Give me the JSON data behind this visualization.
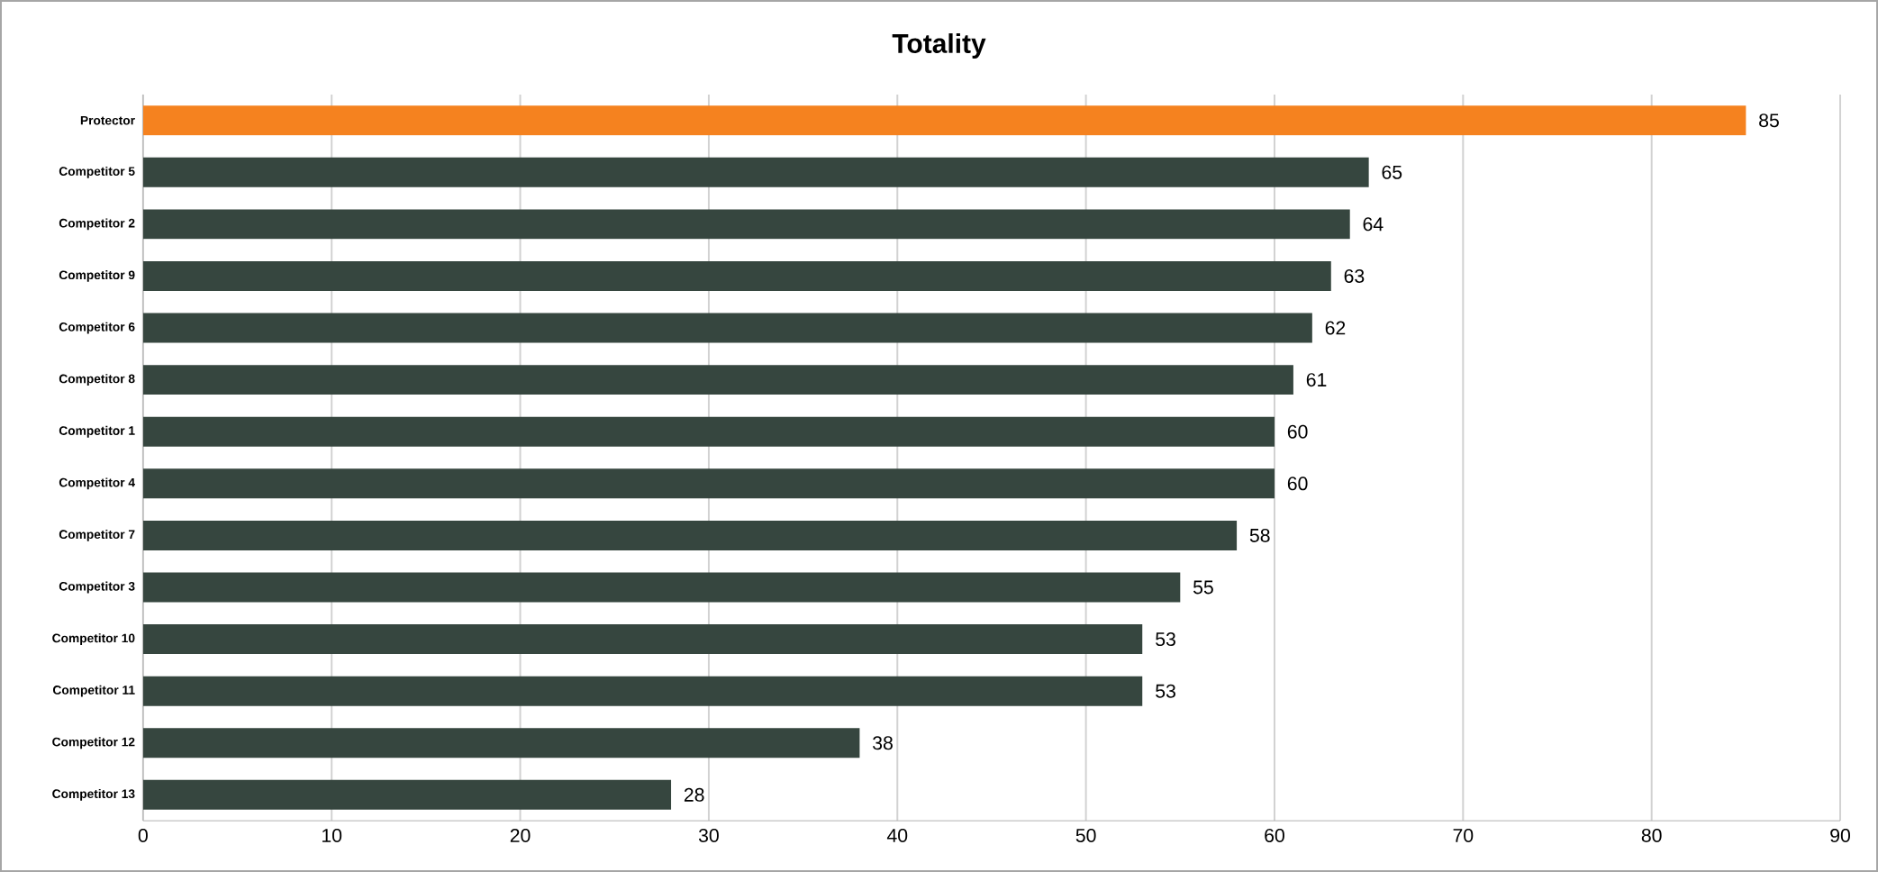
{
  "chart_data": {
    "type": "bar",
    "orientation": "horizontal",
    "title": "Totality",
    "categories": [
      "Protector",
      "Competitor 5",
      "Competitor 2",
      "Competitor 9",
      "Competitor 6",
      "Competitor 8",
      "Competitor 1",
      "Competitor 4",
      "Competitor 7",
      "Competitor 3",
      "Competitor 10",
      "Competitor 11",
      "Competitor 12",
      "Competitor 13"
    ],
    "values": [
      85,
      65,
      64,
      63,
      62,
      61,
      60,
      60,
      58,
      55,
      53,
      53,
      38,
      28
    ],
    "colors": [
      "#f5821f",
      "#36463f",
      "#36463f",
      "#36463f",
      "#36463f",
      "#36463f",
      "#36463f",
      "#36463f",
      "#36463f",
      "#36463f",
      "#36463f",
      "#36463f",
      "#36463f",
      "#36463f"
    ],
    "xlim": [
      0,
      90
    ],
    "xticks": [
      0,
      10,
      20,
      30,
      40,
      50,
      60,
      70,
      80,
      90
    ],
    "grid": "x",
    "data_labels": true
  }
}
